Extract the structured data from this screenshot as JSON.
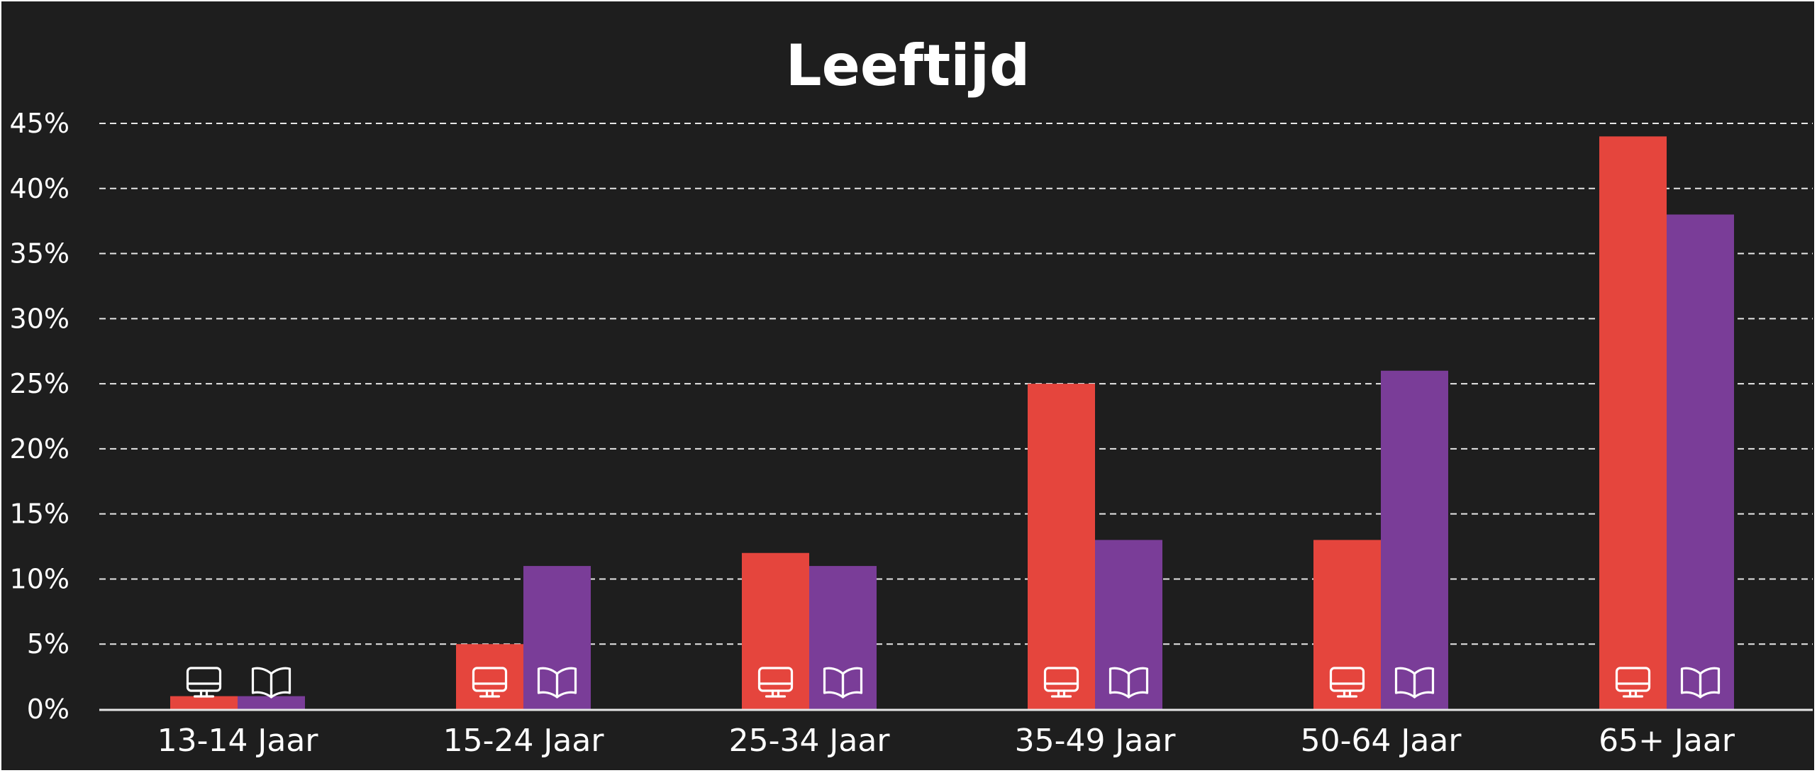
{
  "chart_data": {
    "type": "bar",
    "title": "Leeftijd",
    "xlabel": "",
    "ylabel": "",
    "categories": [
      "13-14 Jaar",
      "15-24 Jaar",
      "25-34 Jaar",
      "35-49 Jaar",
      "50-64 Jaar",
      "65+ Jaar"
    ],
    "series": [
      {
        "icon": "monitor-icon",
        "color": "#e5453d",
        "values": [
          1,
          5,
          12,
          25,
          13,
          44
        ]
      },
      {
        "icon": "open-book-icon",
        "color": "#7a3d98",
        "values": [
          1,
          11,
          11,
          13,
          26,
          38
        ]
      }
    ],
    "ylim": [
      0,
      45
    ],
    "yticks": [
      0,
      5,
      10,
      15,
      20,
      25,
      30,
      35,
      40,
      45
    ],
    "ytick_labels": [
      "0%",
      "5%",
      "10%",
      "15%",
      "20%",
      "25%",
      "30%",
      "35%",
      "40%",
      "45%"
    ],
    "grid": true,
    "legend": "none"
  },
  "colors": {
    "background": "#1e1e1e",
    "text": "#ffffff",
    "grid": "#e6e6e6"
  }
}
